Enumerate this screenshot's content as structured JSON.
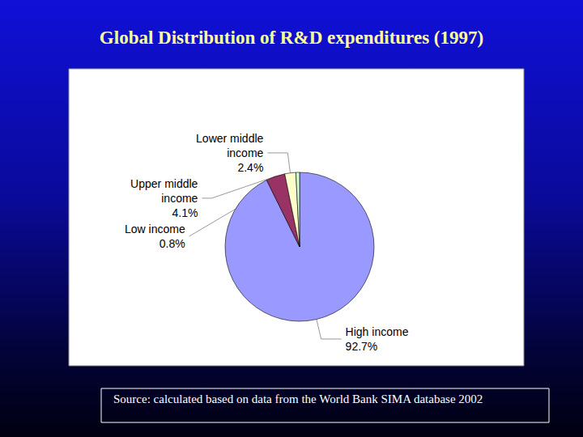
{
  "chart_data": {
    "type": "pie",
    "title": "Global Distribution of R&D expenditures (1997)",
    "note": "Source: calculated based on data from the World Bank SIMA database 2002",
    "categories": [
      "High income",
      "Upper middle income",
      "Lower middle income",
      "Low income"
    ],
    "values": [
      92.7,
      4.1,
      2.4,
      0.8
    ],
    "value_labels": [
      "92.7%",
      "4.1%",
      "2.4%",
      "0.8%"
    ],
    "colors": [
      "#9999ff",
      "#993366",
      "#ffffcc",
      "#ccffcc"
    ],
    "data_labels": true
  }
}
